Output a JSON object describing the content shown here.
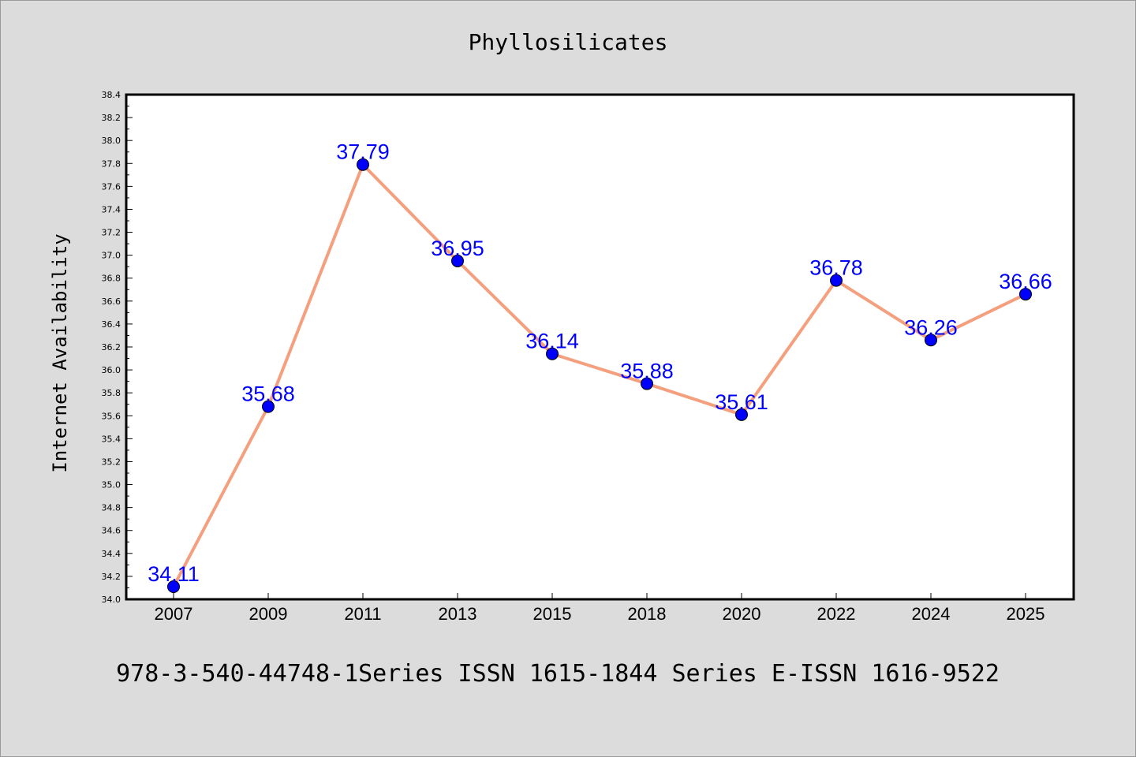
{
  "chart_data": {
    "type": "line",
    "title": "Phyllosilicates",
    "xlabel": "",
    "ylabel": "Internet Availability",
    "categories": [
      "2007",
      "2009",
      "2011",
      "2013",
      "2015",
      "2018",
      "2020",
      "2022",
      "2024",
      "2025"
    ],
    "series": [
      {
        "values": [
          34.11,
          35.68,
          37.79,
          36.95,
          36.14,
          35.88,
          35.61,
          36.78,
          36.26,
          36.66
        ],
        "labels": [
          "34.11",
          "35.68",
          "37.79",
          "36.95",
          "36.14",
          "35.88",
          "35.61",
          "36.78",
          "36.26",
          "36.66"
        ]
      }
    ],
    "ylim": [
      34.0,
      38.4
    ],
    "yticks": [
      "34.0",
      "34.2",
      "34.4",
      "34.6",
      "34.8",
      "35.0",
      "35.2",
      "35.4",
      "35.6",
      "35.8",
      "36.0",
      "36.2",
      "36.4",
      "36.6",
      "36.8",
      "37.0",
      "37.2",
      "37.4",
      "37.6",
      "37.8",
      "38.0",
      "38.2",
      "38.4"
    ],
    "grid": false,
    "legend": "none",
    "colors": {
      "line": "#f4a07f",
      "marker": "#0000ff",
      "data_label": "#0000ff",
      "plot_background": "#ffffff",
      "page_background": "#dcdcdc"
    }
  },
  "footer": {
    "text": "978-3-540-44748-1Series ISSN 1615-1844 Series E-ISSN 1616-9522"
  }
}
